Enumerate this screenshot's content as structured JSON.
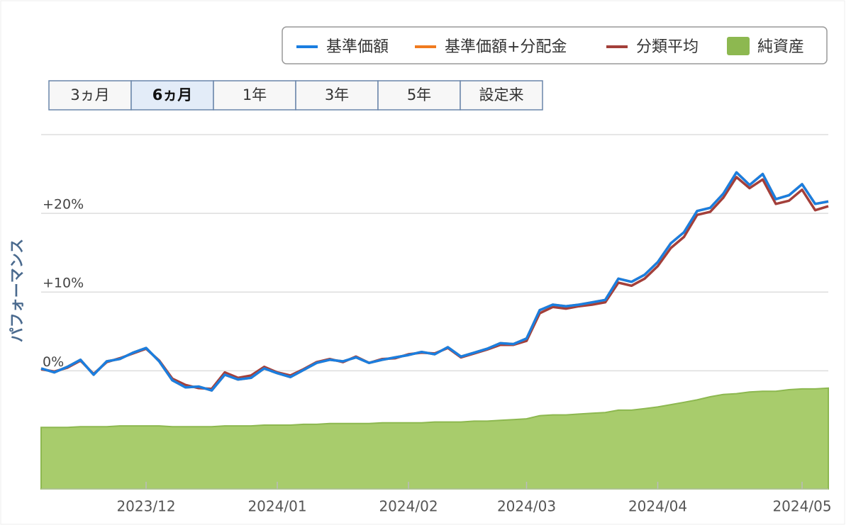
{
  "range_buttons": [
    "3ヵ月",
    "6ヵ月",
    "1年",
    "3年",
    "5年",
    "設定来"
  ],
  "selected_range_index": 1,
  "chart_data": {
    "type": "line",
    "y_label": "パフォーマンス",
    "legend": "top-right",
    "grid": true,
    "ylim": [
      -15,
      30
    ],
    "yticks": [
      {
        "value": 0,
        "label": "0%"
      },
      {
        "value": 10,
        "label": "+10%"
      },
      {
        "value": 20,
        "label": "+20%"
      }
    ],
    "categories": [
      null,
      null,
      null,
      null,
      null,
      null,
      null,
      null,
      "2023/12",
      null,
      null,
      null,
      null,
      null,
      null,
      null,
      null,
      null,
      "2024/01",
      null,
      null,
      null,
      null,
      null,
      null,
      null,
      null,
      null,
      "2024/02",
      null,
      null,
      null,
      null,
      null,
      null,
      null,
      null,
      "2024/03",
      null,
      null,
      null,
      null,
      null,
      null,
      null,
      null,
      null,
      "2024/04",
      null,
      null,
      null,
      null,
      null,
      null,
      null,
      null,
      null,
      null,
      "2024/05",
      null,
      null
    ],
    "series": [
      {
        "name": "基準価額",
        "type": "line",
        "color": "#1a7ee0",
        "values": [
          0.3,
          -0.2,
          0.5,
          1.4,
          -0.5,
          1.2,
          1.5,
          2.3,
          2.9,
          1.2,
          -1.2,
          -2.1,
          -2.0,
          -2.5,
          -0.5,
          -1.1,
          -0.9,
          0.3,
          -0.3,
          -0.8,
          0.1,
          1.0,
          1.4,
          1.2,
          1.7,
          1.0,
          1.4,
          1.7,
          2.0,
          2.4,
          2.1,
          3.0,
          1.8,
          2.3,
          2.8,
          3.5,
          3.4,
          4.1,
          7.7,
          8.4,
          8.2,
          8.4,
          8.7,
          9.0,
          11.7,
          11.3,
          12.2,
          13.8,
          16.2,
          17.6,
          20.3,
          20.7,
          22.5,
          25.2,
          23.6,
          25.0,
          21.8,
          22.3,
          23.7,
          21.2,
          21.5
        ]
      },
      {
        "name": "基準価額+分配金",
        "type": "line",
        "color": "#f07b1f",
        "values": [
          0.3,
          -0.2,
          0.5,
          1.4,
          -0.5,
          1.2,
          1.5,
          2.3,
          2.9,
          1.2,
          -1.2,
          -2.1,
          -2.0,
          -2.5,
          -0.5,
          -1.1,
          -0.9,
          0.3,
          -0.3,
          -0.8,
          0.1,
          1.0,
          1.4,
          1.2,
          1.7,
          1.0,
          1.4,
          1.7,
          2.0,
          2.4,
          2.1,
          3.0,
          1.8,
          2.3,
          2.8,
          3.5,
          3.4,
          4.1,
          7.7,
          8.4,
          8.2,
          8.4,
          8.7,
          9.0,
          11.7,
          11.3,
          12.2,
          13.8,
          16.2,
          17.6,
          20.3,
          20.7,
          22.5,
          25.2,
          23.6,
          25.0,
          21.8,
          22.3,
          23.7,
          21.2,
          21.5
        ]
      },
      {
        "name": "分類平均",
        "type": "line",
        "color": "#a33f3a",
        "values": [
          0.2,
          -0.1,
          0.4,
          1.3,
          -0.4,
          1.1,
          1.6,
          2.2,
          2.8,
          1.3,
          -1.0,
          -1.8,
          -2.2,
          -2.3,
          -0.2,
          -0.9,
          -0.6,
          0.5,
          -0.2,
          -0.6,
          0.2,
          1.1,
          1.5,
          1.1,
          1.8,
          1.0,
          1.5,
          1.6,
          2.1,
          2.3,
          2.2,
          2.9,
          1.7,
          2.2,
          2.7,
          3.3,
          3.3,
          3.8,
          7.3,
          8.1,
          7.9,
          8.2,
          8.4,
          8.7,
          11.2,
          10.8,
          11.7,
          13.3,
          15.6,
          17.0,
          19.8,
          20.2,
          22.0,
          24.6,
          23.2,
          24.3,
          21.2,
          21.6,
          23.0,
          20.4,
          20.9
        ]
      },
      {
        "name": "純資産",
        "type": "area",
        "color": "#a8cc6c",
        "values": [
          -7.2,
          -7.2,
          -7.2,
          -7.1,
          -7.1,
          -7.1,
          -7.0,
          -7.0,
          -7.0,
          -7.0,
          -7.1,
          -7.1,
          -7.1,
          -7.1,
          -7.0,
          -7.0,
          -7.0,
          -6.9,
          -6.9,
          -6.9,
          -6.8,
          -6.8,
          -6.7,
          -6.7,
          -6.7,
          -6.7,
          -6.6,
          -6.6,
          -6.6,
          -6.6,
          -6.5,
          -6.5,
          -6.5,
          -6.4,
          -6.4,
          -6.3,
          -6.2,
          -6.1,
          -5.7,
          -5.6,
          -5.6,
          -5.5,
          -5.4,
          -5.3,
          -5.0,
          -5.0,
          -4.8,
          -4.6,
          -4.3,
          -4.0,
          -3.7,
          -3.3,
          -3.0,
          -2.9,
          -2.7,
          -2.6,
          -2.6,
          -2.4,
          -2.3,
          -2.3,
          -2.2
        ]
      }
    ]
  }
}
